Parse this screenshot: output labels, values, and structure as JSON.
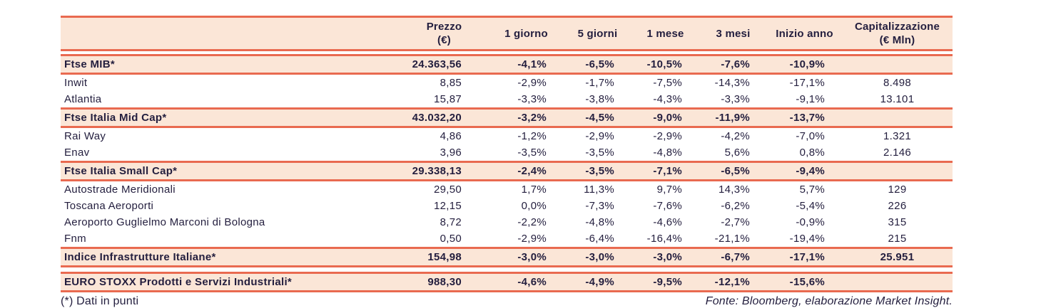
{
  "palette": {
    "divider_line": "#e96a50",
    "highlight_row_bg": "#fbe6d7",
    "text": "#231e3e",
    "page_bg": "#ffffff"
  },
  "table": {
    "columns": [
      "",
      "Prezzo\n(€)",
      "1 giorno",
      "5 giorni",
      "1 mese",
      "3 mesi",
      "Inizio anno",
      "Capitalizzazione\n(€ Mln)"
    ],
    "rows": [
      {
        "type": "index",
        "gap_before": false,
        "name": "Ftse MIB*",
        "values": [
          "24.363,56",
          "-4,1%",
          "-6,5%",
          "-10,5%",
          "-7,6%",
          "-10,9%",
          ""
        ]
      },
      {
        "type": "stock",
        "gap_before": false,
        "name": "Inwit",
        "values": [
          "8,85",
          "-2,9%",
          "-1,7%",
          "-7,5%",
          "-14,3%",
          "-17,1%",
          "8.498"
        ]
      },
      {
        "type": "stock",
        "gap_before": false,
        "name": "Atlantia",
        "values": [
          "15,87",
          "-3,3%",
          "-3,8%",
          "-4,3%",
          "-3,3%",
          "-9,1%",
          "13.101"
        ]
      },
      {
        "type": "index",
        "gap_before": false,
        "name": "Ftse Italia Mid Cap*",
        "values": [
          "43.032,20",
          "-3,2%",
          "-4,5%",
          "-9,0%",
          "-11,9%",
          "-13,7%",
          ""
        ]
      },
      {
        "type": "stock",
        "gap_before": false,
        "name": "Rai Way",
        "values": [
          "4,86",
          "-1,2%",
          "-2,9%",
          "-2,9%",
          "-4,2%",
          "-7,0%",
          "1.321"
        ]
      },
      {
        "type": "stock",
        "gap_before": false,
        "name": "Enav",
        "values": [
          "3,96",
          "-3,5%",
          "-3,5%",
          "-4,8%",
          "5,6%",
          "0,8%",
          "2.146"
        ]
      },
      {
        "type": "index",
        "gap_before": false,
        "name": "Ftse Italia Small Cap*",
        "values": [
          "29.338,13",
          "-2,4%",
          "-3,5%",
          "-7,1%",
          "-6,5%",
          "-9,4%",
          ""
        ]
      },
      {
        "type": "stock",
        "gap_before": false,
        "name": "Autostrade Meridionali",
        "values": [
          "29,50",
          "1,7%",
          "11,3%",
          "9,7%",
          "14,3%",
          "5,7%",
          "129"
        ]
      },
      {
        "type": "stock",
        "gap_before": false,
        "name": "Toscana Aeroporti",
        "values": [
          "12,15",
          "0,0%",
          "-7,3%",
          "-7,6%",
          "-6,2%",
          "-5,4%",
          "226"
        ]
      },
      {
        "type": "stock",
        "gap_before": false,
        "name": "Aeroporto Guglielmo Marconi di Bologna",
        "values": [
          "8,72",
          "-2,2%",
          "-4,8%",
          "-4,6%",
          "-2,7%",
          "-0,9%",
          "315"
        ]
      },
      {
        "type": "stock",
        "gap_before": false,
        "name": "Fnm",
        "values": [
          "0,50",
          "-2,9%",
          "-6,4%",
          "-16,4%",
          "-21,1%",
          "-19,4%",
          "215"
        ]
      },
      {
        "type": "index",
        "gap_before": false,
        "name": "Indice Infrastrutture Italiane*",
        "values": [
          "154,98",
          "-3,0%",
          "-3,0%",
          "-3,0%",
          "-6,7%",
          "-17,1%",
          "25.951"
        ]
      },
      {
        "type": "index",
        "gap_before": true,
        "name": "EURO STOXX Prodotti e Servizi Industriali*",
        "values": [
          "988,30",
          "-4,6%",
          "-4,9%",
          "-9,5%",
          "-12,1%",
          "-15,6%",
          ""
        ]
      }
    ]
  },
  "footer": {
    "note": "(*) Dati in punti",
    "source": "Fonte: Bloomberg, elaborazione Market Insight."
  }
}
